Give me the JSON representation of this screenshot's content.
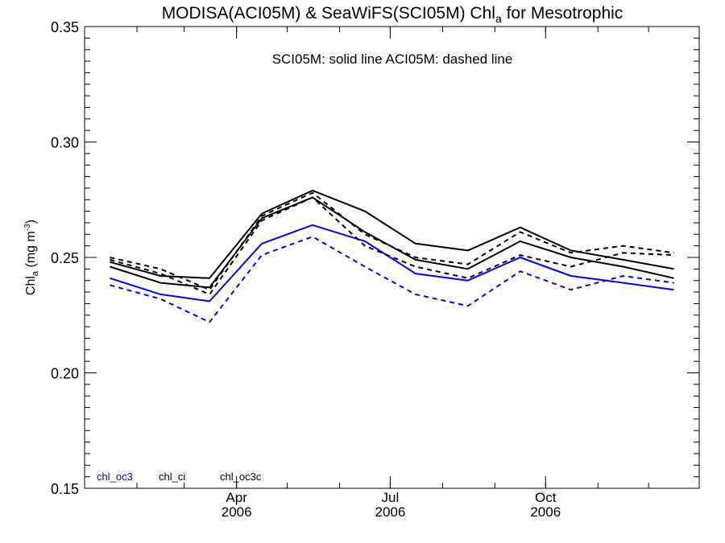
{
  "chart_data": {
    "type": "line",
    "title_prefix": "MODISA(ACI05M) & SeaWiFS(SCI05M)  Chl",
    "title_sub": "a",
    "title_suffix": " for Mesotrophic",
    "annotation": "SCI05M: solid line   ACI05M: dashed line",
    "ylabel_main": "Chl",
    "ylabel_sub": "a",
    "ylabel_unit": " (mg m",
    "ylabel_sup": "-3",
    "ylabel_close": ")",
    "ylim": [
      0.15,
      0.35
    ],
    "yticks": [
      0.15,
      0.2,
      0.25,
      0.3,
      0.35
    ],
    "ytick_labels": [
      "0.15",
      "0.20",
      "0.25",
      "0.30",
      "0.35"
    ],
    "x": [
      "2006-01-16",
      "2006-02-15",
      "2006-03-16",
      "2006-04-16",
      "2006-05-16",
      "2006-06-16",
      "2006-07-16",
      "2006-08-16",
      "2006-09-16",
      "2006-10-16",
      "2006-11-16",
      "2006-12-16"
    ],
    "xlim": [
      "2006-01-01",
      "2006-12-31"
    ],
    "xticks": [
      {
        "date": "2006-04-01",
        "month": "Apr",
        "year": "2006"
      },
      {
        "date": "2006-07-01",
        "month": "Jul",
        "year": "2006"
      },
      {
        "date": "2006-10-01",
        "month": "Oct",
        "year": "2006"
      }
    ],
    "legend": [
      {
        "label": "chl_oc3",
        "color": "#0000ff"
      },
      {
        "label": "chl_ci",
        "color": "#000000"
      },
      {
        "label": "chl_oc3c",
        "color": "#000000"
      }
    ],
    "series": [
      {
        "product": "chl_oc3",
        "source": "SCI05M",
        "color": "#0000ff",
        "dash": false,
        "values": [
          0.241,
          0.234,
          0.231,
          0.256,
          0.264,
          0.257,
          0.243,
          0.24,
          0.25,
          0.242,
          0.239,
          0.236
        ]
      },
      {
        "product": "chl_oc3",
        "source": "ACI05M",
        "color": "#0000ff",
        "dash": true,
        "values": [
          0.238,
          0.232,
          0.222,
          0.251,
          0.259,
          0.246,
          0.234,
          0.229,
          0.244,
          0.236,
          0.242,
          0.239
        ]
      },
      {
        "product": "chl_ci",
        "source": "SCI05M",
        "color": "#000000",
        "dash": false,
        "values": [
          0.246,
          0.239,
          0.237,
          0.267,
          0.276,
          0.261,
          0.249,
          0.245,
          0.257,
          0.25,
          0.246,
          0.241
        ]
      },
      {
        "product": "chl_oc3c",
        "source": "SCI05M",
        "color": "#000000",
        "dash": false,
        "values": [
          0.248,
          0.242,
          0.241,
          0.269,
          0.279,
          0.27,
          0.256,
          0.253,
          0.263,
          0.253,
          0.249,
          0.245
        ]
      },
      {
        "product": "chl_ci",
        "source": "ACI05M",
        "color": "#000000",
        "dash": true,
        "values": [
          0.249,
          0.243,
          0.234,
          0.266,
          0.276,
          0.255,
          0.246,
          0.241,
          0.251,
          0.246,
          0.252,
          0.251
        ]
      },
      {
        "product": "chl_oc3c",
        "source": "ACI05M",
        "color": "#000000",
        "dash": true,
        "values": [
          0.25,
          0.245,
          0.236,
          0.268,
          0.278,
          0.26,
          0.25,
          0.247,
          0.261,
          0.252,
          0.255,
          0.252
        ]
      }
    ]
  }
}
